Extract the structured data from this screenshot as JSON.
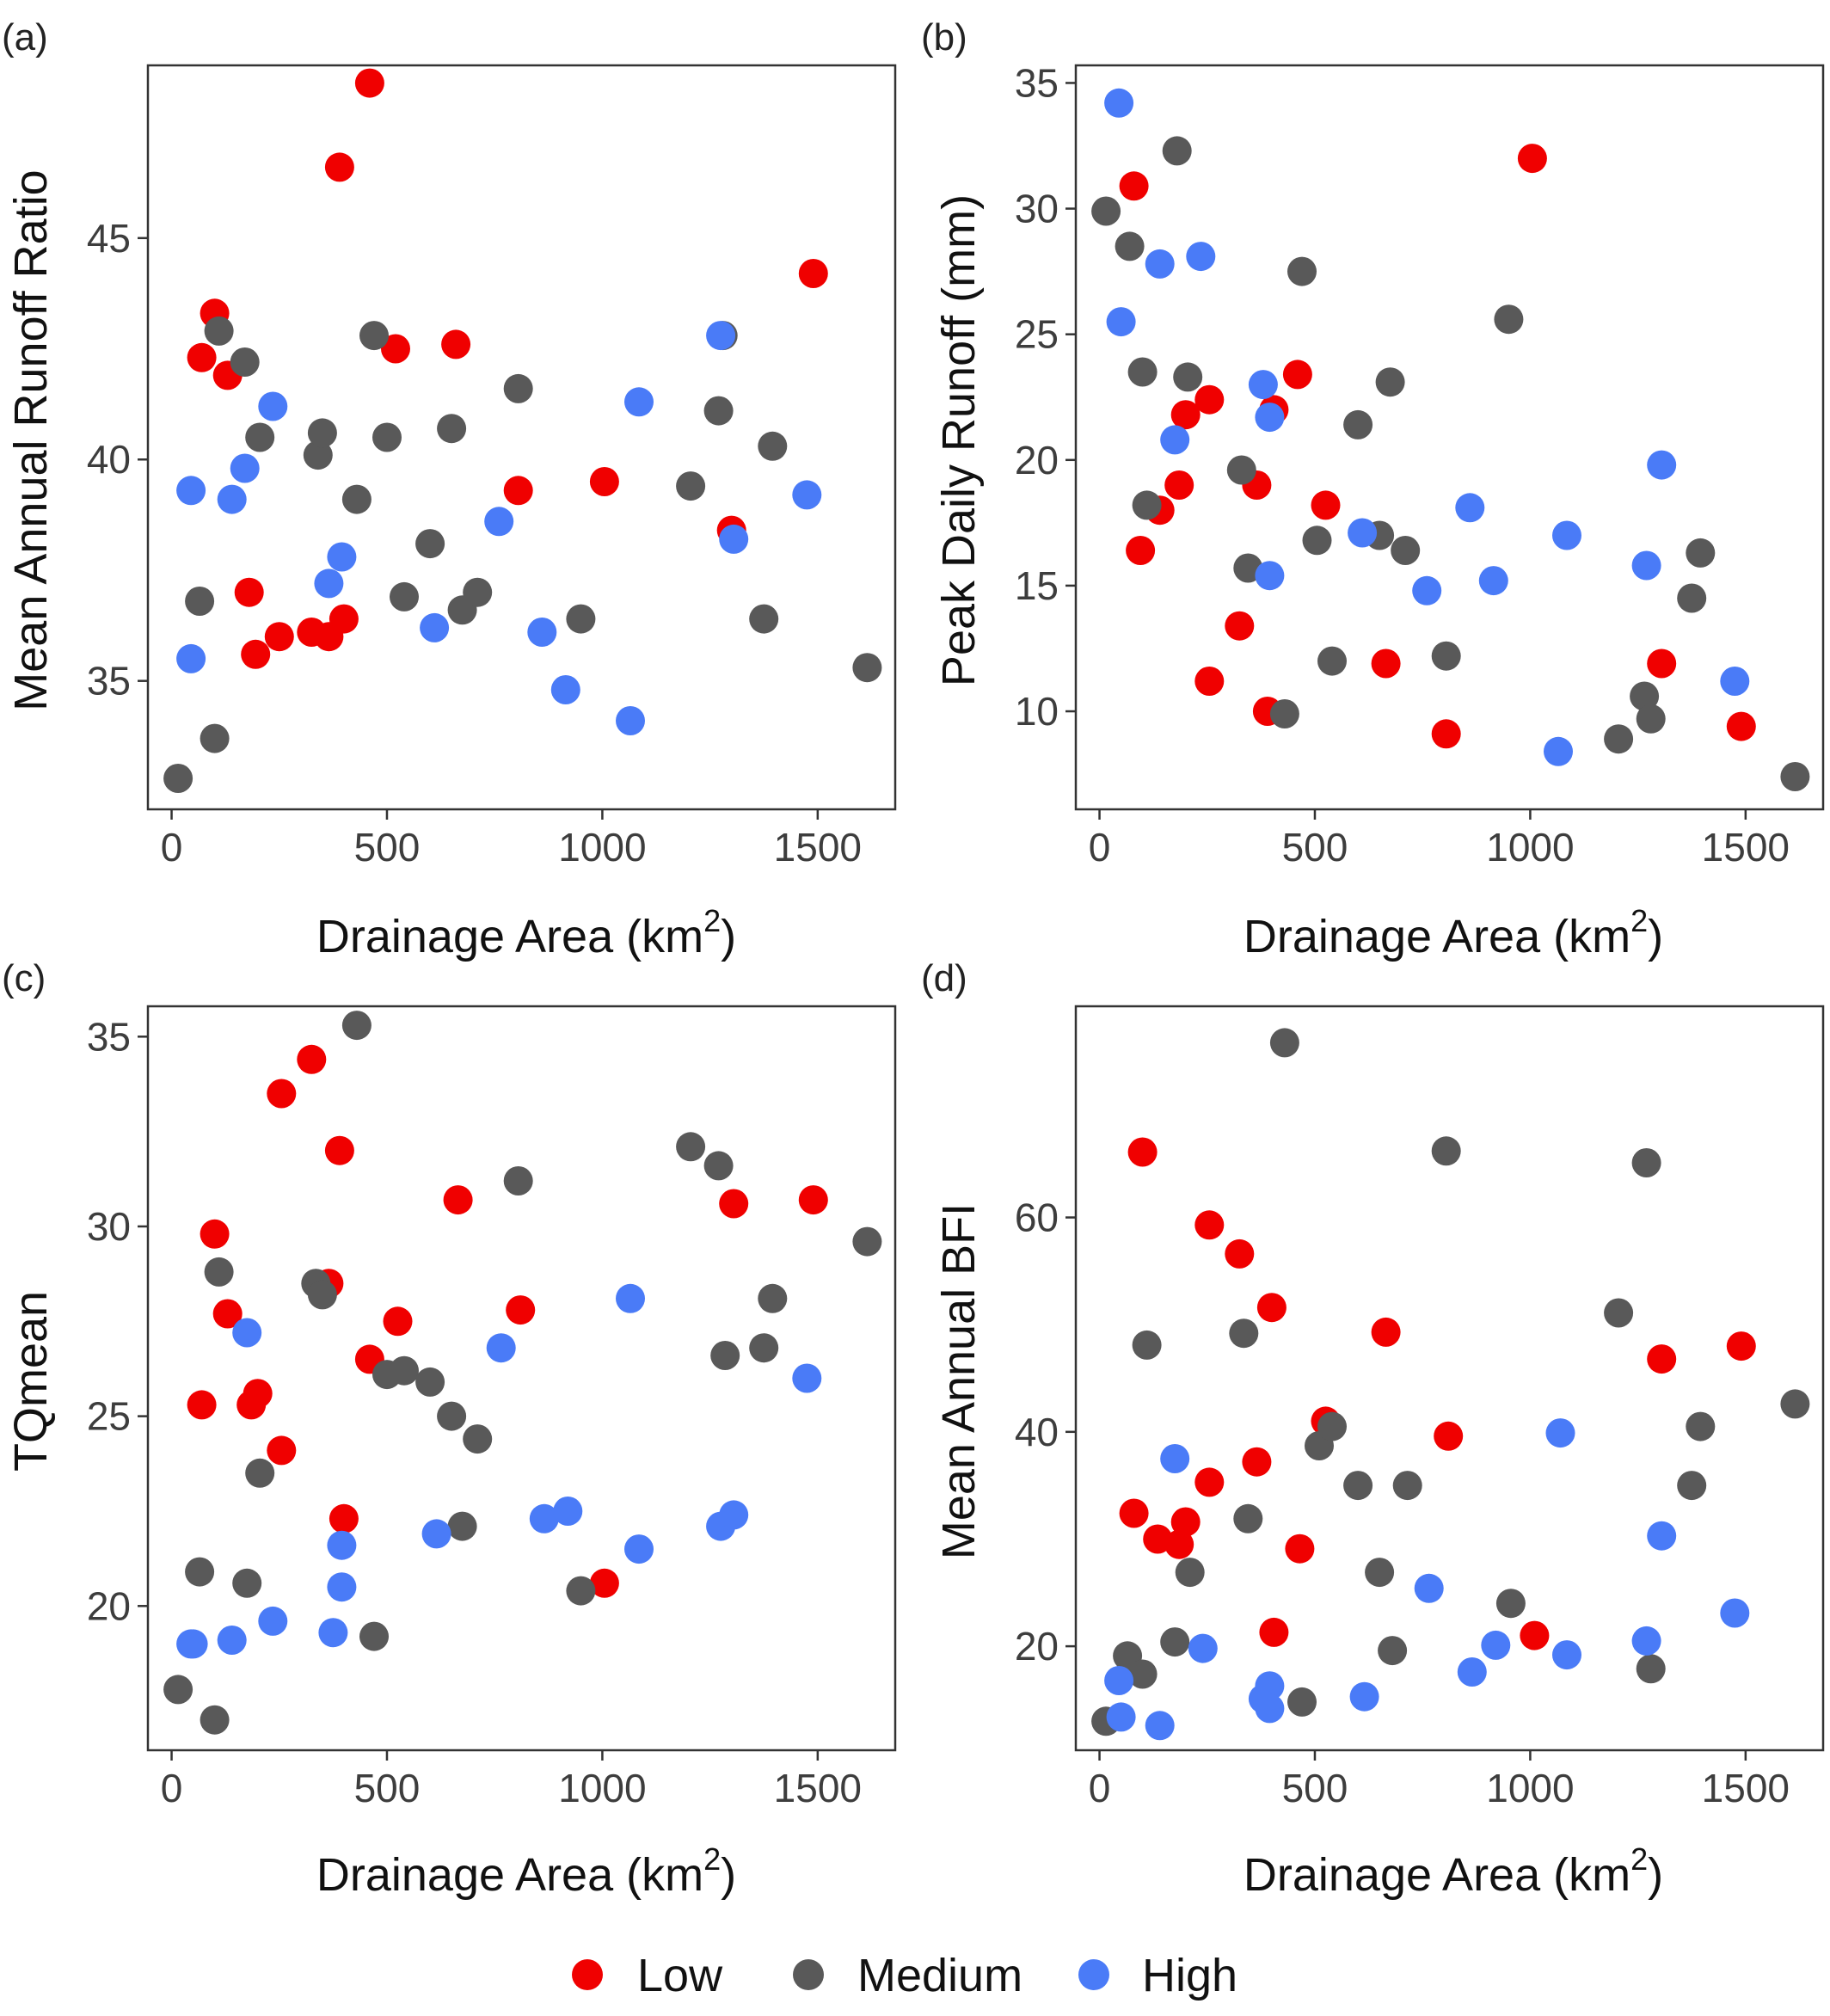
{
  "colors": {
    "Low": "#f00000",
    "Medium": "#595959",
    "High": "#4a7bf7"
  },
  "legend": {
    "items": [
      "Low",
      "Medium",
      "High"
    ]
  },
  "chart_data": [
    {
      "type": "scatter",
      "panel_label": "(a)",
      "xlabel": "Drainage Area (km",
      "xlabel_sup": "2",
      "xlabel_tail": ")",
      "ylabel": "Mean Annual Runoff Ratio",
      "xlim": [
        -55,
        1680
      ],
      "ylim": [
        32.1,
        48.9
      ],
      "xticks": [
        0,
        500,
        1000,
        1500
      ],
      "yticks": [
        35,
        40,
        45
      ],
      "grid": false,
      "series": [
        {
          "name": "Low",
          "x": [
            100,
            70,
            130,
            180,
            195,
            250,
            325,
            365,
            400,
            390,
            460,
            520,
            660,
            805,
            1005,
            1300,
            1490
          ],
          "y": [
            43.3,
            42.3,
            41.9,
            37.0,
            35.6,
            36.0,
            36.1,
            36.0,
            36.4,
            46.6,
            48.5,
            42.5,
            42.6,
            39.3,
            39.5,
            38.4,
            44.2
          ]
        },
        {
          "name": "Medium",
          "x": [
            15,
            65,
            100,
            110,
            170,
            205,
            340,
            350,
            430,
            470,
            500,
            540,
            600,
            650,
            675,
            710,
            805,
            950,
            1205,
            1270,
            1280,
            1375,
            1395,
            1615
          ],
          "y": [
            32.8,
            36.8,
            33.7,
            42.9,
            42.2,
            40.5,
            40.1,
            40.6,
            39.1,
            42.8,
            40.5,
            36.9,
            38.1,
            40.7,
            36.6,
            37.0,
            41.6,
            36.4,
            39.4,
            41.1,
            42.8,
            36.4,
            40.3,
            35.3
          ]
        },
        {
          "name": "High",
          "x": [
            45,
            45,
            140,
            170,
            235,
            365,
            395,
            610,
            760,
            860,
            915,
            1065,
            1085,
            1275,
            1305,
            1475
          ],
          "y": [
            39.3,
            35.5,
            39.1,
            39.8,
            41.2,
            37.2,
            37.8,
            36.2,
            38.6,
            36.1,
            34.8,
            34.1,
            41.3,
            42.8,
            38.2,
            39.2
          ]
        }
      ]
    },
    {
      "type": "scatter",
      "panel_label": "(b)",
      "xlabel": "Drainage Area (km",
      "xlabel_sup": "2",
      "xlabel_tail": ")",
      "ylabel": "Peak Daily Runoff (mm)",
      "xlim": [
        -55,
        1680
      ],
      "ylim": [
        6.1,
        35.7
      ],
      "xticks": [
        0,
        500,
        1000,
        1500
      ],
      "yticks": [
        10,
        15,
        20,
        25,
        30,
        35
      ],
      "grid": false,
      "series": [
        {
          "name": "Low",
          "x": [
            80,
            95,
            140,
            185,
            200,
            255,
            255,
            325,
            365,
            390,
            405,
            460,
            525,
            665,
            805,
            1005,
            1305,
            1490
          ],
          "y": [
            30.9,
            16.4,
            18.0,
            19.0,
            21.8,
            22.4,
            11.2,
            13.4,
            19.0,
            10.0,
            22.0,
            23.4,
            18.2,
            11.9,
            9.1,
            32.0,
            11.9,
            9.4
          ]
        },
        {
          "name": "Medium",
          "x": [
            15,
            70,
            100,
            110,
            180,
            205,
            330,
            345,
            430,
            470,
            505,
            540,
            600,
            650,
            675,
            710,
            805,
            950,
            1205,
            1265,
            1280,
            1375,
            1395,
            1615
          ],
          "y": [
            29.9,
            28.5,
            23.5,
            18.2,
            32.3,
            23.3,
            19.6,
            15.7,
            9.9,
            27.5,
            16.8,
            12.0,
            21.4,
            17.0,
            23.1,
            16.4,
            12.2,
            25.6,
            8.9,
            10.6,
            9.7,
            14.5,
            16.3,
            7.4
          ]
        },
        {
          "name": "High",
          "x": [
            45,
            50,
            140,
            175,
            235,
            380,
            395,
            395,
            610,
            760,
            860,
            915,
            1065,
            1085,
            1270,
            1305,
            1475
          ],
          "y": [
            34.2,
            25.5,
            27.8,
            20.8,
            28.1,
            23.0,
            21.7,
            15.4,
            17.1,
            14.8,
            18.1,
            15.2,
            8.4,
            17.0,
            15.8,
            19.8,
            11.2
          ]
        }
      ]
    },
    {
      "type": "scatter",
      "panel_label": "(c)",
      "xlabel": "Drainage Area (km",
      "xlabel_sup": "2",
      "xlabel_tail": ")",
      "ylabel": "TQmean",
      "xlim": [
        -55,
        1680
      ],
      "ylim": [
        16.2,
        35.8
      ],
      "xticks": [
        0,
        500,
        1000,
        1500
      ],
      "yticks": [
        20,
        25,
        30,
        35
      ],
      "grid": false,
      "series": [
        {
          "name": "Low",
          "x": [
            70,
            100,
            130,
            185,
            200,
            255,
            255,
            325,
            365,
            390,
            400,
            460,
            525,
            665,
            810,
            1005,
            1305,
            1490
          ],
          "y": [
            25.3,
            29.8,
            27.7,
            25.3,
            25.6,
            24.1,
            33.5,
            34.4,
            28.5,
            32.0,
            22.3,
            26.5,
            27.5,
            30.7,
            27.8,
            20.6,
            30.6,
            30.7
          ]
        },
        {
          "name": "Medium",
          "x": [
            15,
            65,
            100,
            110,
            175,
            205,
            335,
            350,
            430,
            470,
            500,
            540,
            600,
            650,
            675,
            710,
            805,
            950,
            1205,
            1270,
            1285,
            1375,
            1395,
            1615
          ],
          "y": [
            17.8,
            20.9,
            17.0,
            28.8,
            20.6,
            23.5,
            28.5,
            28.2,
            35.3,
            19.2,
            26.1,
            26.2,
            25.9,
            25.0,
            22.1,
            24.4,
            31.2,
            20.4,
            32.1,
            31.6,
            26.6,
            26.8,
            28.1,
            29.6
          ]
        },
        {
          "name": "High",
          "x": [
            45,
            50,
            140,
            175,
            235,
            375,
            395,
            395,
            615,
            765,
            865,
            920,
            1065,
            1085,
            1275,
            1305,
            1475
          ],
          "y": [
            19.0,
            19.0,
            19.1,
            27.2,
            19.6,
            19.3,
            21.6,
            20.5,
            21.9,
            26.8,
            22.3,
            22.5,
            28.1,
            21.5,
            22.1,
            22.4,
            26.0
          ]
        }
      ]
    },
    {
      "type": "scatter",
      "panel_label": "(d)",
      "xlabel": "Drainage Area (km",
      "xlabel_sup": "2",
      "xlabel_tail": ")",
      "ylabel": "Mean Annual BFI",
      "xlim": [
        -55,
        1680
      ],
      "ylim": [
        10.3,
        79.7
      ],
      "xticks": [
        0,
        500,
        1000,
        1500
      ],
      "yticks": [
        20,
        40,
        60
      ],
      "grid": false,
      "series": [
        {
          "name": "Low",
          "x": [
            80,
            100,
            135,
            185,
            200,
            255,
            255,
            325,
            365,
            400,
            405,
            465,
            525,
            665,
            810,
            1010,
            1305,
            1490
          ],
          "y": [
            32.4,
            66.1,
            30.0,
            29.5,
            31.6,
            59.3,
            35.3,
            56.6,
            37.2,
            51.6,
            21.3,
            29.1,
            41.0,
            49.3,
            39.6,
            21.0,
            46.8,
            48.0
          ]
        },
        {
          "name": "Medium",
          "x": [
            15,
            65,
            100,
            110,
            175,
            210,
            335,
            345,
            430,
            470,
            510,
            540,
            600,
            650,
            680,
            715,
            805,
            955,
            1205,
            1270,
            1280,
            1375,
            1395,
            1615
          ],
          "y": [
            13.0,
            19.1,
            17.4,
            48.1,
            20.4,
            26.9,
            49.2,
            31.9,
            76.3,
            14.8,
            38.7,
            40.5,
            35.0,
            26.9,
            19.6,
            35.0,
            66.2,
            24.0,
            51.1,
            65.1,
            17.9,
            35.0,
            40.5,
            42.6
          ]
        },
        {
          "name": "High",
          "x": [
            45,
            50,
            140,
            175,
            240,
            380,
            395,
            395,
            615,
            765,
            865,
            920,
            1070,
            1085,
            1270,
            1305,
            1475
          ],
          "y": [
            16.8,
            13.4,
            12.6,
            37.5,
            19.8,
            15.1,
            16.3,
            14.2,
            15.3,
            25.4,
            17.6,
            20.1,
            39.9,
            19.2,
            20.5,
            30.3,
            23.1
          ]
        }
      ]
    }
  ]
}
